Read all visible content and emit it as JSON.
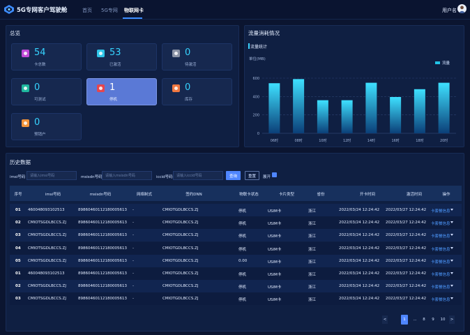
{
  "header": {
    "title": "5G专网客户驾驶舱",
    "nav": [
      "首页",
      "5G专网",
      "物联网卡"
    ],
    "active_nav": 2,
    "username": "用户名"
  },
  "overview": {
    "title": "总览",
    "cards": [
      {
        "value": "54",
        "label": "卡总数",
        "color": "#c04ad8",
        "icon": "sim-card-icon"
      },
      {
        "value": "53",
        "label": "已激活",
        "color": "#2fc5e8",
        "icon": "check-icon"
      },
      {
        "value": "0",
        "label": "待激活",
        "color": "#8b93a6",
        "icon": "clock-icon"
      },
      {
        "value": "0",
        "label": "可测试",
        "color": "#1fb79e",
        "icon": "test-icon"
      },
      {
        "value": "1",
        "label": "停机",
        "color": "#e5464e",
        "icon": "stop-icon",
        "selected": true
      },
      {
        "value": "0",
        "label": "库存",
        "color": "#f07840",
        "icon": "inventory-icon"
      },
      {
        "value": "0",
        "label": "预销户",
        "color": "#f0923a",
        "icon": "user-icon"
      }
    ]
  },
  "traffic": {
    "title": "流量消耗情况",
    "subtitle": "流量统计",
    "legend": "流量"
  },
  "chart_data": {
    "type": "bar",
    "ylabel": "单位(MB)",
    "categories": [
      "06时",
      "08时",
      "10时",
      "12时",
      "14时",
      "16时",
      "18时",
      "20时"
    ],
    "values": [
      545,
      590,
      360,
      360,
      550,
      395,
      480,
      550
    ],
    "yticks": [
      "0",
      "200",
      "400",
      "600"
    ],
    "ylim": [
      0,
      600
    ],
    "legend": "流量",
    "legend_position": "top-right",
    "bar_color": "#21c3e6"
  },
  "history": {
    "title": "历史数据",
    "filters": [
      {
        "label": "imsi号码",
        "placeholder": "请输入imsi号码"
      },
      {
        "label": "msisdn号码",
        "placeholder": "请输入msisdn号码"
      },
      {
        "label": "iccid号码",
        "placeholder": "请输入iccid号码"
      }
    ],
    "query_label": "查询",
    "reset_label": "重置",
    "expand_label": "展开",
    "columns": [
      "序号",
      "imsi号码",
      "msisdn号码",
      "网络制式",
      "签约DNN",
      "物联卡状态",
      "卡片类型",
      "省份",
      "开卡时间",
      "激活时间",
      "操作"
    ],
    "rows": [
      [
        "01",
        "460048093102513",
        "898604601121800056​13",
        "-",
        "CMIOTGDLBCCS.ZJ",
        "停机",
        "USIM卡",
        "浙江",
        "2022/03/24 12:24:42",
        "2022/03/27 12:24:42",
        "卡套餐信息"
      ],
      [
        "02",
        "CMIOTSGDLBCCS.ZJ",
        "898604601121800056​13",
        "-",
        "CMIOTGDLBCCS.ZJ",
        "停机",
        "USIM卡",
        "浙江",
        "2022/03/24 12:24:42",
        "2022/03/27 12:24:42",
        "卡套餐信息"
      ],
      [
        "03",
        "CMIOTSGDLBCCS.ZJ",
        "898604601121800056​13",
        "-",
        "CMIOTGDLBCCS.ZJ",
        "停机",
        "USIM卡",
        "浙江",
        "2022/03/24 12:24:42",
        "2022/03/27 12:24:42",
        "卡套餐信息"
      ],
      [
        "04",
        "CMIOTSGDLBCCS.ZJ",
        "898604601121800056​13",
        "-",
        "CMIOTGDLBCCS.ZJ",
        "停机",
        "USIM卡",
        "浙江",
        "2022/03/24 12:24:42",
        "2022/03/27 12:24:42",
        "卡套餐信息"
      ],
      [
        "05",
        "CMIOTSGDLBCCS.ZJ",
        "898604601121800056​13",
        "-",
        "CMIOTGDLBCCS.ZJ",
        "0.00",
        "USIM卡",
        "浙江",
        "2022/03/24 12:24:42",
        "2022/03/27 12:24:42",
        "卡套餐信息"
      ],
      [
        "01",
        "460048093102513",
        "898604601121800056​13",
        "-",
        "CMIOTGDLBCCS.ZJ",
        "停机",
        "USIM卡",
        "浙江",
        "2022/03/24 12:24:42",
        "2022/03/27 12:24:42",
        "卡套餐信息"
      ],
      [
        "02",
        "CMIOTSGDLBCCS.ZJ",
        "898604601121800056​13",
        "-",
        "CMIOTGDLBCCS.ZJ",
        "停机",
        "USIM卡",
        "浙江",
        "2022/03/24 12:24:42",
        "2022/03/27 12:24:42",
        "卡套餐信息"
      ],
      [
        "03",
        "CMIOTSGDLBCCS.ZJ",
        "898604601121800056​13",
        "-",
        "CMIOTGDLBCCS.ZJ",
        "停机",
        "USIM卡",
        "浙江",
        "2022/03/24 12:24:42",
        "2022/03/27 12:24:42",
        "卡套餐信息"
      ]
    ]
  },
  "pagination": {
    "prev": "<",
    "pages": [
      "1",
      "...",
      "8",
      "9",
      "10"
    ],
    "next": ">",
    "current": "1"
  }
}
